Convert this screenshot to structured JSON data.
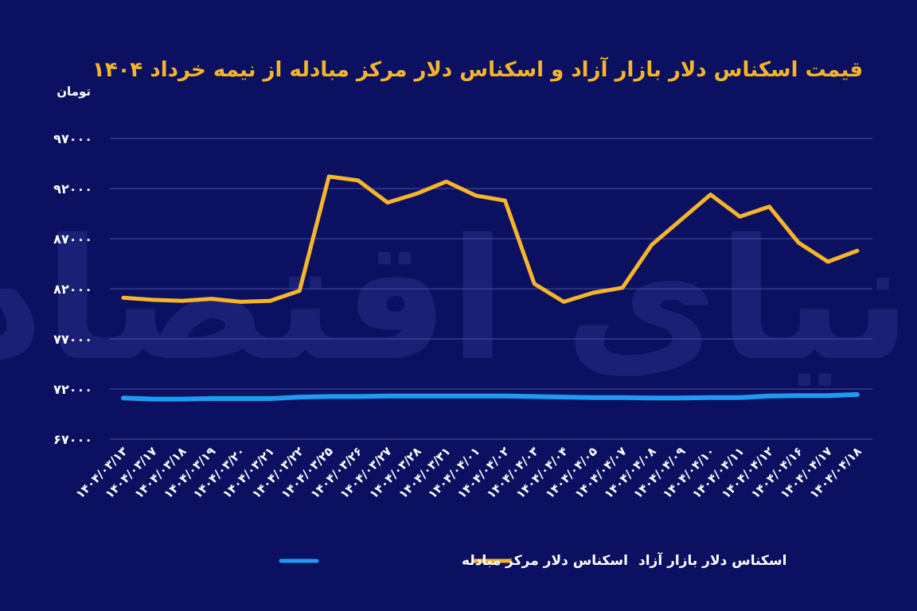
{
  "chart_data": {
    "type": "line",
    "title": "قیمت اسکناس دلار بازار آزاد و اسکناس دلار مرکز مبادله از نیمه خرداد ۱۴۰۴",
    "ylabel": "تومان",
    "ylim": [
      67000,
      97000
    ],
    "yticks": [
      67000,
      72000,
      77000,
      82000,
      87000,
      92000,
      97000
    ],
    "ytick_labels": [
      "۶۷۰۰۰",
      "۷۲۰۰۰",
      "۷۷۰۰۰",
      "۸۲۰۰۰",
      "۸۷۰۰۰",
      "۹۲۰۰۰",
      "۹۷۰۰۰"
    ],
    "grid": true,
    "legend_position": "bottom",
    "watermark": "دنیای اقتصاد",
    "x": [
      "۱۴۰۴/۰۳/۱۳",
      "۱۴۰۴/۰۳/۱۷",
      "۱۴۰۴/۰۳/۱۸",
      "۱۴۰۴/۰۳/۱۹",
      "۱۴۰۴/۰۳/۲۰",
      "۱۴۰۴/۰۳/۲۱",
      "۱۴۰۴/۰۳/۲۲",
      "۱۴۰۴/۰۳/۲۵",
      "۱۴۰۴/۰۳/۲۶",
      "۱۴۰۴/۰۳/۲۷",
      "۱۴۰۴/۰۳/۲۸",
      "۱۴۰۴/۰۳/۳۱",
      "۱۴۰۴/۰۴/۰۱",
      "۱۴۰۴/۰۴/۰۲",
      "۱۴۰۴/۰۴/۰۳",
      "۱۴۰۴/۰۴/۰۴",
      "۱۴۰۴/۰۴/۰۵",
      "۱۴۰۴/۰۴/۰۷",
      "۱۴۰۴/۰۴/۰۸",
      "۱۴۰۴/۰۴/۰۹",
      "۱۴۰۴/۰۴/۱۰",
      "۱۴۰۴/۰۴/۱۱",
      "۱۴۰۴/۰۴/۱۲",
      "۱۴۰۴/۰۴/۱۶",
      "۱۴۰۴/۰۴/۱۷",
      "۱۴۰۴/۰۴/۱۸"
    ],
    "series": [
      {
        "name": "اسکناس دلار بازار آزاد",
        "color": "#f7b52a",
        "values": [
          81100,
          80900,
          80800,
          81000,
          80700,
          80800,
          81800,
          93200,
          92800,
          90600,
          91500,
          92700,
          91300,
          90800,
          82500,
          80700,
          81600,
          82100,
          86400,
          88900,
          91400,
          89200,
          90200,
          86600,
          84700,
          85800
        ]
      },
      {
        "name": "اسکناس دلار مرکز مبادله",
        "color": "#1e9bf0",
        "values": [
          71100,
          71000,
          71000,
          71050,
          71050,
          71050,
          71200,
          71250,
          71250,
          71300,
          71300,
          71300,
          71300,
          71300,
          71250,
          71200,
          71150,
          71150,
          71100,
          71100,
          71150,
          71150,
          71300,
          71350,
          71350,
          71450
        ]
      }
    ]
  }
}
